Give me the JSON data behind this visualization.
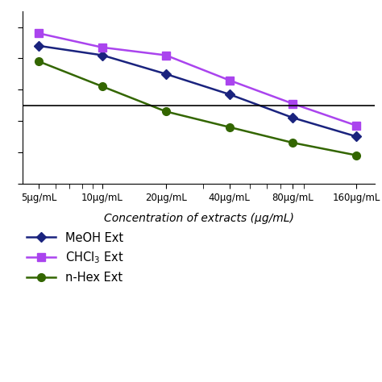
{
  "x_values": [
    5,
    10,
    20,
    40,
    80,
    160
  ],
  "x_labels": [
    "5μg/mL",
    "10μg/mL",
    "20μg/mL",
    "40μg/mL",
    "80μg/mL",
    "160μg/mL"
  ],
  "series": [
    {
      "label": "MeOH Ext",
      "color": "#1a237e",
      "marker": "D",
      "markersize": 6,
      "values": [
        88,
        82,
        70,
        57,
        42,
        30
      ]
    },
    {
      "label": "CHCl$_3$ Ext",
      "color": "#aa44ee",
      "marker": "s",
      "markersize": 7,
      "values": [
        96,
        87,
        82,
        66,
        51,
        37
      ]
    },
    {
      "label": "n-Hex Ext",
      "color": "#336600",
      "marker": "o",
      "markersize": 7,
      "values": [
        78,
        62,
        46,
        36,
        26,
        18
      ]
    }
  ],
  "xlabel": "Concentration of extracts (μg/mL)",
  "hline_y": 50,
  "ylim": [
    0,
    110
  ],
  "background_color": "#ffffff",
  "legend_labels": [
    "MeOH Ext",
    "CHCl$_3$ Ext",
    "n-Hex Ext"
  ]
}
